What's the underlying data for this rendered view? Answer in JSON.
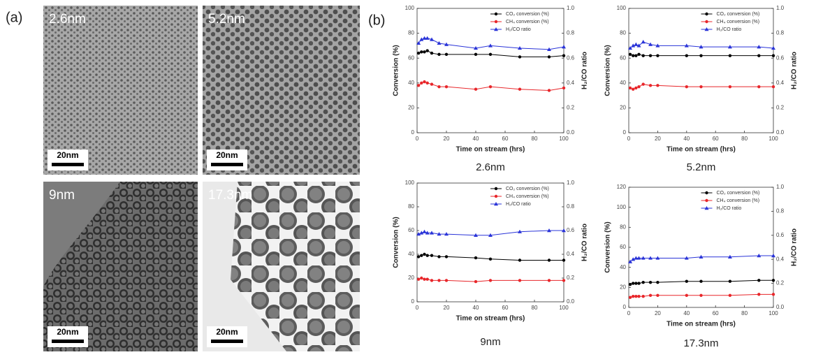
{
  "panel_a": {
    "label": "(a)",
    "images": [
      {
        "size": "2.6nm",
        "scale_bar": "20nm"
      },
      {
        "size": "5.2nm",
        "scale_bar": "20nm"
      },
      {
        "size": "9nm",
        "scale_bar": "20nm"
      },
      {
        "size": "17.3nm",
        "scale_bar": "20nm"
      }
    ]
  },
  "panel_b": {
    "label": "(b)"
  },
  "chart_data": [
    {
      "type": "line",
      "caption": "2.6nm",
      "xlabel": "Time on stream (hrs)",
      "ylabel": "Conversion (%)",
      "y2label": "H₂/CO ratio",
      "x": [
        1,
        3,
        5,
        7,
        10,
        15,
        20,
        40,
        50,
        70,
        90,
        100
      ],
      "xlim": [
        0,
        100
      ],
      "xticks": [
        0,
        20,
        40,
        60,
        80,
        100
      ],
      "ylim": [
        0,
        100
      ],
      "yticks": [
        0,
        20,
        40,
        60,
        80,
        100
      ],
      "y2lim": [
        0,
        1
      ],
      "y2ticks": [
        {
          "value": 0,
          "label": "0.0"
        },
        0.2,
        0.4,
        0.6,
        0.8,
        {
          "value": 1,
          "label": "1.0"
        }
      ],
      "series": [
        {
          "name": "CO₂ conversion (%)",
          "color": "#000000",
          "marker": "circle",
          "values": [
            64,
            65,
            65,
            66,
            64,
            63,
            63,
            63,
            63,
            61,
            61,
            62
          ]
        },
        {
          "name": "CH₄ conversion (%)",
          "color": "#e8262a",
          "marker": "circle",
          "values": [
            38,
            40,
            41,
            40,
            39,
            37,
            37,
            35,
            37,
            35,
            34,
            36
          ]
        },
        {
          "name": "H₂/CO ratio",
          "color": "#2a34d8",
          "marker": "triangle",
          "axis": "y2",
          "values": [
            0.72,
            0.75,
            0.76,
            0.76,
            0.75,
            0.72,
            0.71,
            0.68,
            0.7,
            0.68,
            0.67,
            0.69
          ]
        }
      ]
    },
    {
      "type": "line",
      "caption": "5.2nm",
      "xlabel": "Time on stream (hrs)",
      "ylabel": "Conversion (%)",
      "y2label": "H₂/CO ratio",
      "x": [
        1,
        3,
        5,
        7,
        10,
        15,
        20,
        40,
        50,
        70,
        90,
        100
      ],
      "xlim": [
        0,
        100
      ],
      "xticks": [
        0,
        20,
        40,
        60,
        80,
        100
      ],
      "ylim": [
        0,
        100
      ],
      "yticks": [
        0,
        20,
        40,
        60,
        80,
        100
      ],
      "y2lim": [
        0,
        1
      ],
      "y2ticks": [
        {
          "value": 0,
          "label": "0.0"
        },
        0.2,
        0.4,
        0.6,
        0.8,
        {
          "value": 1,
          "label": "1.0"
        }
      ],
      "series": [
        {
          "name": "CO₂ conversion (%)",
          "color": "#000000",
          "marker": "circle",
          "values": [
            63,
            62,
            62,
            63,
            62,
            62,
            62,
            62,
            62,
            62,
            62,
            62
          ]
        },
        {
          "name": "CH₄ conversion (%)",
          "color": "#e8262a",
          "marker": "circle",
          "values": [
            36,
            35,
            36,
            37,
            39,
            38,
            38,
            37,
            37,
            37,
            37,
            37
          ]
        },
        {
          "name": "H₂/CO ratio",
          "color": "#2a34d8",
          "marker": "triangle",
          "axis": "y2",
          "values": [
            0.68,
            0.7,
            0.71,
            0.7,
            0.73,
            0.71,
            0.7,
            0.7,
            0.69,
            0.69,
            0.69,
            0.68
          ]
        }
      ]
    },
    {
      "type": "line",
      "caption": "9nm",
      "xlabel": "Time on stream (hrs)",
      "ylabel": "Conversion (%)",
      "y2label": "H₂/CO ratio",
      "x": [
        1,
        3,
        5,
        7,
        10,
        15,
        20,
        40,
        50,
        70,
        90,
        100
      ],
      "xlim": [
        0,
        100
      ],
      "xticks": [
        0,
        20,
        40,
        60,
        80,
        100
      ],
      "ylim": [
        0,
        100
      ],
      "yticks": [
        0,
        20,
        40,
        60,
        80,
        100
      ],
      "y2lim": [
        0,
        1
      ],
      "y2ticks": [
        {
          "value": 0,
          "label": "0.0"
        },
        0.2,
        0.4,
        0.6,
        0.8,
        {
          "value": 1,
          "label": "1.0"
        }
      ],
      "series": [
        {
          "name": "CO₂ conversion (%)",
          "color": "#000000",
          "marker": "circle",
          "values": [
            38,
            39,
            40,
            39,
            39,
            38,
            38,
            37,
            36,
            35,
            35,
            35
          ]
        },
        {
          "name": "CH₄ conversion (%)",
          "color": "#e8262a",
          "marker": "circle",
          "values": [
            19,
            20,
            19,
            19,
            18,
            18,
            18,
            17,
            18,
            18,
            18,
            18
          ]
        },
        {
          "name": "H₂/CO ratio",
          "color": "#2a34d8",
          "marker": "triangle",
          "axis": "y2",
          "values": [
            0.57,
            0.58,
            0.59,
            0.58,
            0.58,
            0.57,
            0.57,
            0.56,
            0.56,
            0.59,
            0.6,
            0.6
          ]
        }
      ]
    },
    {
      "type": "line",
      "caption": "17.3nm",
      "xlabel": "Time on stream (hrs)",
      "ylabel": "Conversion (%)",
      "y2label": "H₂/CO ratio",
      "x": [
        1,
        3,
        5,
        7,
        10,
        15,
        20,
        40,
        50,
        70,
        90,
        100
      ],
      "xlim": [
        0,
        100
      ],
      "xticks": [
        0,
        20,
        40,
        60,
        80,
        100
      ],
      "ylim": [
        0,
        120
      ],
      "yticks": [
        0,
        20,
        40,
        60,
        80,
        100,
        120
      ],
      "y2lim": [
        0,
        1
      ],
      "y2ticks": [
        {
          "value": 0,
          "label": "0.0"
        },
        0.2,
        0.4,
        0.6,
        0.8,
        {
          "value": 1,
          "label": "1.0"
        }
      ],
      "series": [
        {
          "name": "CO₂ conversion (%)",
          "color": "#000000",
          "marker": "circle",
          "values": [
            23,
            24,
            24,
            24,
            25,
            25,
            25,
            26,
            26,
            26,
            27,
            27
          ]
        },
        {
          "name": "CH₄ conversion (%)",
          "color": "#e8262a",
          "marker": "circle",
          "values": [
            10,
            11,
            11,
            11,
            11,
            12,
            12,
            12,
            12,
            12,
            13,
            13
          ]
        },
        {
          "name": "H₂/CO ratio",
          "color": "#2a34d8",
          "marker": "triangle",
          "axis": "y2",
          "values": [
            0.38,
            0.4,
            0.41,
            0.41,
            0.41,
            0.41,
            0.41,
            0.41,
            0.42,
            0.42,
            0.43,
            0.43
          ]
        }
      ]
    }
  ]
}
